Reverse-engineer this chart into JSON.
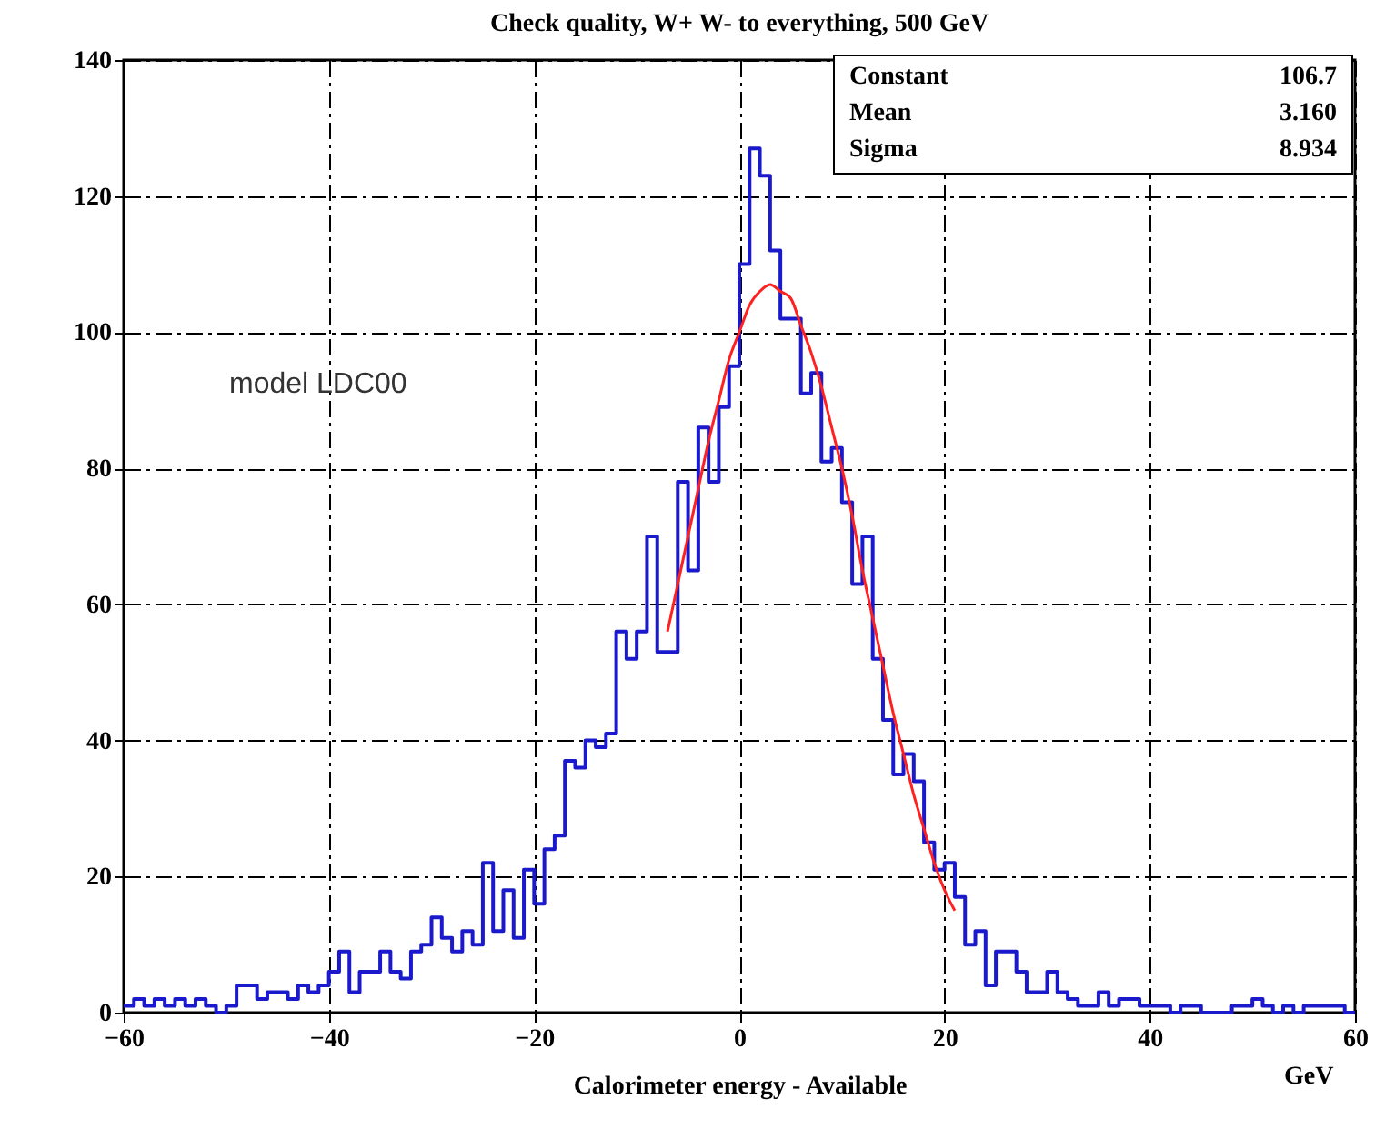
{
  "chart_data": {
    "type": "histogram",
    "title": "Check quality,  W+ W- to everything, 500 GeV",
    "xlabel": "Calorimeter energy - Available",
    "annotations": [
      "model LDC00",
      "GeV",
      "Constant",
      "106.7",
      "Mean",
      "3.160",
      "Sigma",
      "8.934"
    ],
    "xlim": [
      -60,
      60
    ],
    "xticks": [
      -60,
      -40,
      -20,
      0,
      20,
      40,
      60
    ],
    "ylim": [
      0,
      140
    ],
    "yticks": [
      0,
      20,
      40,
      60,
      80,
      100,
      120,
      140
    ],
    "grid": true,
    "series": [
      {
        "type": "histogram",
        "color": "#1a1acc",
        "bins": [
          -60,
          -59,
          -58,
          -57,
          -56,
          -55,
          -54,
          -53,
          -52,
          -51,
          -50,
          -49,
          -48,
          -47,
          -46,
          -45,
          -44,
          -43,
          -42,
          -41,
          -40,
          -39,
          -38,
          -37,
          -36,
          -35,
          -34,
          -33,
          -32,
          -31,
          -30,
          -29,
          -28,
          -27,
          -26,
          -25,
          -24,
          -23,
          -22,
          -21,
          -20,
          -19,
          -18,
          -17,
          -16,
          -15,
          -14,
          -13,
          -12,
          -11,
          -10,
          -9,
          -8,
          -7,
          -6,
          -5,
          -4,
          -3,
          -2,
          -1,
          0,
          1,
          2,
          3,
          4,
          5,
          6,
          7,
          8,
          9,
          10,
          11,
          12,
          13,
          14,
          15,
          16,
          17,
          18,
          19,
          20,
          21,
          22,
          23,
          24,
          25,
          26,
          27,
          28,
          29,
          30,
          31,
          32,
          33,
          34,
          35,
          36,
          37,
          38,
          39,
          40,
          41,
          42,
          43,
          44,
          45,
          46,
          47,
          48,
          49,
          50,
          51,
          52,
          53,
          54,
          55,
          56,
          57,
          58,
          59,
          60
        ],
        "values": [
          1,
          2,
          1,
          2,
          1,
          2,
          1,
          2,
          1,
          0,
          1,
          4,
          4,
          2,
          3,
          3,
          2,
          4,
          3,
          4,
          6,
          9,
          3,
          6,
          6,
          9,
          6,
          5,
          9,
          10,
          14,
          11,
          9,
          12,
          10,
          22,
          12,
          18,
          11,
          21,
          16,
          24,
          26,
          37,
          36,
          40,
          39,
          41,
          56,
          52,
          56,
          70,
          53,
          53,
          78,
          65,
          86,
          78,
          89,
          95,
          110,
          127,
          123,
          112,
          102,
          102,
          91,
          94,
          81,
          83,
          75,
          63,
          70,
          52,
          43,
          35,
          38,
          34,
          25,
          21,
          22,
          17,
          10,
          12,
          4,
          9,
          9,
          6,
          3,
          3,
          6,
          3,
          2,
          1,
          1,
          3,
          1,
          2,
          2,
          1,
          1,
          1,
          0,
          1,
          1,
          0,
          0,
          0,
          1,
          1,
          2,
          1,
          0,
          1,
          0,
          1,
          1,
          1,
          1,
          0
        ]
      },
      {
        "type": "line",
        "color": "#ff2020",
        "x": [
          -7,
          -6,
          -5,
          -4,
          -3,
          -2,
          -1,
          0,
          1,
          2,
          3,
          4,
          5,
          6,
          7,
          8,
          9,
          10,
          11,
          12,
          13,
          14,
          15,
          16,
          17,
          18,
          19,
          20,
          21
        ],
        "values": [
          56,
          63,
          70,
          77,
          84,
          90,
          96,
          100,
          104,
          106,
          107,
          106,
          105,
          101,
          97,
          92,
          86,
          80,
          73,
          65,
          58,
          51,
          44,
          38,
          32,
          27,
          22,
          18,
          15
        ]
      }
    ]
  }
}
